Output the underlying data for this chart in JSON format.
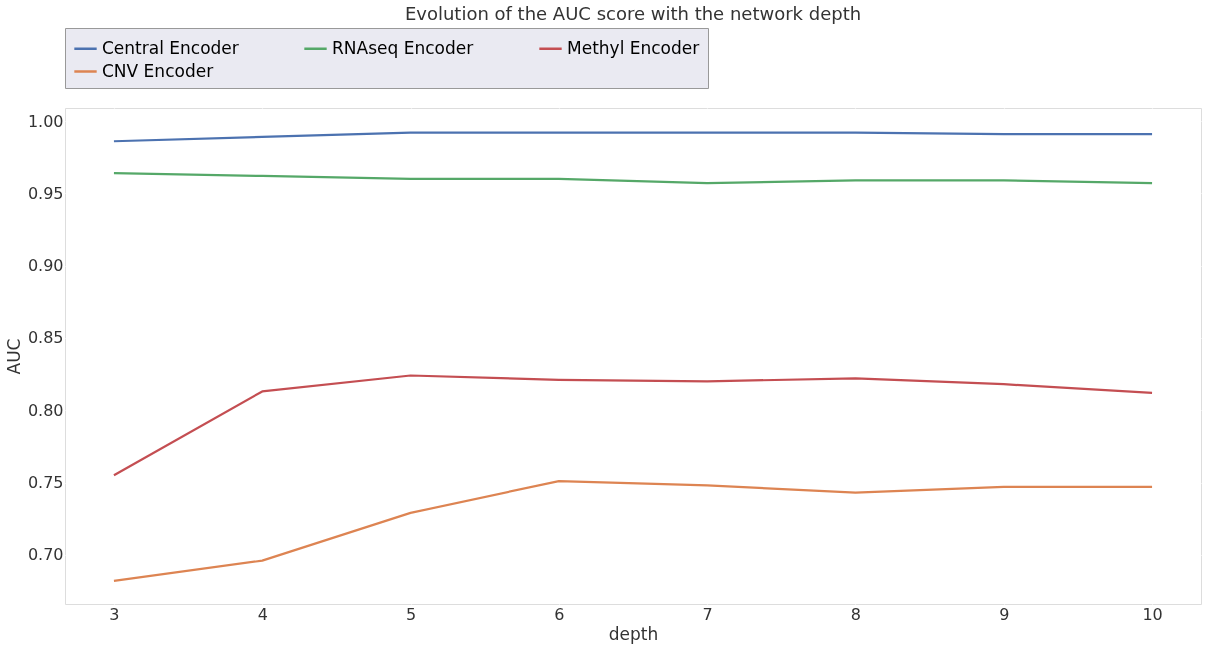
{
  "chart_data": {
    "type": "line",
    "title": "Evolution of the AUC score with the network depth",
    "xlabel": "depth",
    "ylabel": "AUC",
    "x": [
      3,
      4,
      5,
      6,
      7,
      8,
      9,
      10
    ],
    "series": [
      {
        "name": "Central Encoder",
        "color": "#4c72b0",
        "values": [
          0.986,
          0.989,
          0.992,
          0.992,
          0.992,
          0.992,
          0.991,
          0.991
        ]
      },
      {
        "name": "RNAseq Encoder",
        "color": "#55a868",
        "values": [
          0.964,
          0.962,
          0.96,
          0.96,
          0.957,
          0.959,
          0.959,
          0.957
        ]
      },
      {
        "name": "Methyl Encoder",
        "color": "#c44e52",
        "values": [
          0.755,
          0.813,
          0.824,
          0.821,
          0.82,
          0.822,
          0.818,
          0.812
        ]
      },
      {
        "name": "CNV Encoder",
        "color": "#dd8452",
        "values": [
          0.682,
          0.696,
          0.729,
          0.751,
          0.748,
          0.743,
          0.747,
          0.747
        ]
      }
    ],
    "xlim": [
      2.67,
      10.33
    ],
    "xticks": [
      3,
      4,
      5,
      6,
      7,
      8,
      9,
      10
    ],
    "ylim": [
      0.666,
      1.009
    ],
    "yticks": [
      {
        "value": 0.7,
        "label": "0.70"
      },
      0.75,
      {
        "value": 0.8,
        "label": "0.80"
      },
      0.85,
      {
        "value": 0.9,
        "label": "0.90"
      },
      0.95,
      {
        "value": 1.0,
        "label": "1.00"
      }
    ],
    "grid": true,
    "legend": "top",
    "marker": "none",
    "line_style": "solid"
  }
}
